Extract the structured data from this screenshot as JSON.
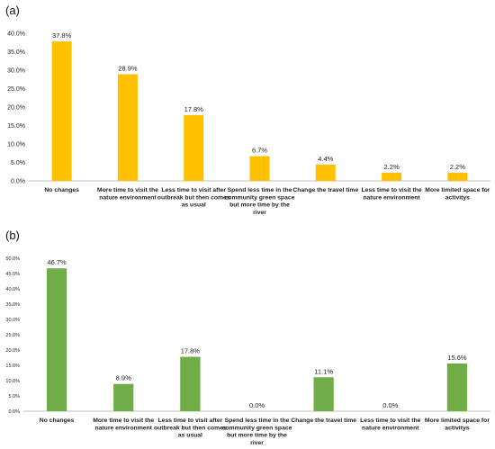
{
  "chart_data": [
    {
      "type": "bar",
      "panel_label": "(a)",
      "color": "#FFC000",
      "categories": [
        "No changes",
        "More time to visit the nature environment",
        "Less time to visit after outbreak but then comes as usual",
        "Spend less time in the community green space but more time by the river",
        "Change the travel time",
        "Less time to visit the nature environment",
        "More limited space for activitys"
      ],
      "category_lines": [
        [
          "No changes"
        ],
        [
          "More time to visit the",
          "nature environment"
        ],
        [
          "Less time to visit after",
          "outbreak but then comes",
          "as usual"
        ],
        [
          "Spend less time in the",
          "community green space",
          "but more time by the",
          "river"
        ],
        [
          "Change the travel time"
        ],
        [
          "Less time to visit the",
          "nature environment"
        ],
        [
          "More limited space for",
          "activitys"
        ]
      ],
      "values": [
        37.8,
        28.9,
        17.8,
        6.7,
        4.4,
        2.2,
        2.2
      ],
      "data_labels": [
        "37.8%",
        "28.9%",
        "17.8%",
        "6.7%",
        "4.4%",
        "2.2%",
        "2.2%"
      ],
      "ylim": [
        0,
        40
      ],
      "yticks": [
        "0.0%",
        "5.0%",
        "10.0%",
        "15.0%",
        "20.0%",
        "25.0%",
        "30.0%",
        "35.0%",
        "40.0%"
      ],
      "title": "",
      "xlabel": "",
      "ylabel": "",
      "grid": false
    },
    {
      "type": "bar",
      "panel_label": "(b)",
      "color": "#70AD47",
      "categories": [
        "No changes",
        "More time to visit the nature environment",
        "Less time to visit after outbreak but then comes as usual",
        "Spend less time in the community green space but more time by the river",
        "Change the travel time",
        "Less time to visit the nature environment",
        "More limited space for activitys"
      ],
      "category_lines": [
        [
          "No changes"
        ],
        [
          "More time to visit the",
          "nature environment"
        ],
        [
          "Less time to visit after",
          "outbreak but then comes",
          "as usual"
        ],
        [
          "Spend less time in the",
          "community green space",
          "but more time by the",
          "river"
        ],
        [
          "Change the travel time"
        ],
        [
          "Less time to visit the",
          "nature environment"
        ],
        [
          "More limited space for",
          "activitys"
        ]
      ],
      "values": [
        46.7,
        8.9,
        17.8,
        0.0,
        11.1,
        0.0,
        15.6
      ],
      "data_labels": [
        "46.7%",
        "8.9%",
        "17.8%",
        "0.0%",
        "11.1%",
        "0.0%",
        "15.6%"
      ],
      "ylim": [
        0,
        50
      ],
      "yticks": [
        "0.0%",
        "5.0%",
        "10.0%",
        "15.0%",
        "20.0%",
        "25.0%",
        "30.0%",
        "35.0%",
        "40.0%",
        "45.0%",
        "50.0%"
      ],
      "title": "",
      "xlabel": "",
      "ylabel": "",
      "grid": false
    }
  ]
}
